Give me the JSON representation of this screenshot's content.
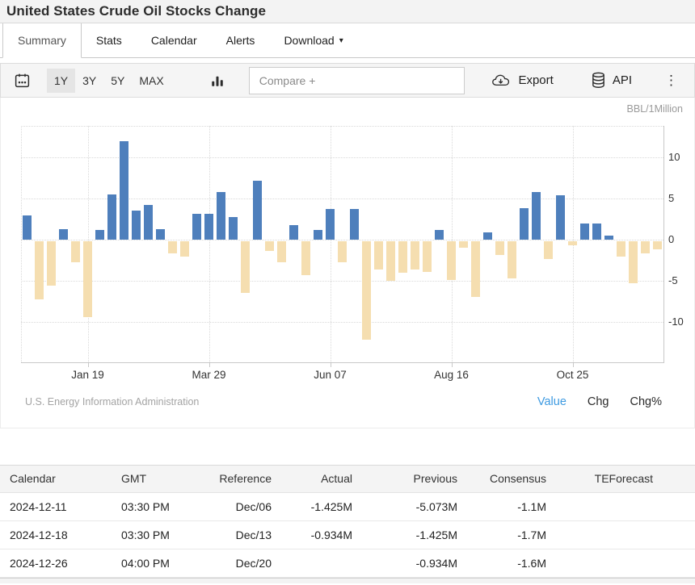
{
  "page": {
    "title": "United States Crude Oil Stocks Change"
  },
  "tabs": {
    "items": [
      {
        "label": "Summary",
        "active": true,
        "caret": false
      },
      {
        "label": "Stats",
        "active": false,
        "caret": false
      },
      {
        "label": "Calendar",
        "active": false,
        "caret": false
      },
      {
        "label": "Alerts",
        "active": false,
        "caret": false
      },
      {
        "label": "Download",
        "active": false,
        "caret": true
      }
    ]
  },
  "toolbar": {
    "ranges": [
      {
        "label": "1Y",
        "active": true
      },
      {
        "label": "3Y",
        "active": false
      },
      {
        "label": "5Y",
        "active": false
      },
      {
        "label": "MAX",
        "active": false
      }
    ],
    "compare_placeholder": "Compare +",
    "export_label": "Export",
    "api_label": "API",
    "icons": [
      "calendar-icon",
      "bar-chart-icon",
      "export-cloud-icon",
      "api-database-icon",
      "kebab-menu-icon"
    ]
  },
  "chart": {
    "unit_label": "BBL/1Million",
    "source": "U.S. Energy Information Administration",
    "view_links": [
      {
        "label": "Value",
        "active": true
      },
      {
        "label": "Chg",
        "active": false
      },
      {
        "label": "Chg%",
        "active": false
      }
    ]
  },
  "chart_data": {
    "type": "bar",
    "title": "United States Crude Oil Stocks Change",
    "ylabel": "BBL/1Million",
    "ylim": [
      -14.4,
      14.4
    ],
    "grid": true,
    "legend": "none",
    "positive_color": "#4e7fbc",
    "negative_color": "#f5deb0",
    "yticks": [
      10,
      5,
      0,
      -5,
      -10
    ],
    "xticks": [
      {
        "label": "Jan 19",
        "index": 5
      },
      {
        "label": "Mar 29",
        "index": 15
      },
      {
        "label": "Jun 07",
        "index": 25
      },
      {
        "label": "Aug 16",
        "index": 35
      },
      {
        "label": "Oct 25",
        "index": 45
      }
    ],
    "values": [
      2.9,
      -7.1,
      -5.4,
      1.3,
      -2.5,
      -9.2,
      1.2,
      5.5,
      12.0,
      3.5,
      4.2,
      1.3,
      -1.5,
      -1.9,
      3.1,
      3.1,
      5.8,
      2.7,
      -6.3,
      7.2,
      -1.2,
      -2.5,
      1.8,
      -4.1,
      1.2,
      3.7,
      -2.5,
      3.7,
      -12.0,
      -3.4,
      -4.8,
      -3.8,
      -3.4,
      -3.7,
      1.2,
      -4.7,
      -0.8,
      -6.8,
      0.9,
      -1.7,
      -4.5,
      3.8,
      5.8,
      -2.2,
      5.4,
      -0.5,
      2.0,
      2.0,
      0.5,
      -1.9,
      -5.073,
      -1.425,
      -0.934
    ]
  },
  "table": {
    "headers": [
      "Calendar",
      "GMT",
      "Reference",
      "Actual",
      "Previous",
      "Consensus",
      "TEForecast"
    ],
    "rows": [
      [
        "2024-12-11",
        "03:30 PM",
        "Dec/06",
        "-1.425M",
        "-5.073M",
        "-1.1M",
        ""
      ],
      [
        "2024-12-18",
        "03:30 PM",
        "Dec/13",
        "-0.934M",
        "-1.425M",
        "-1.7M",
        ""
      ],
      [
        "2024-12-26",
        "04:00 PM",
        "Dec/20",
        "",
        "-0.934M",
        "-1.6M",
        ""
      ]
    ]
  }
}
